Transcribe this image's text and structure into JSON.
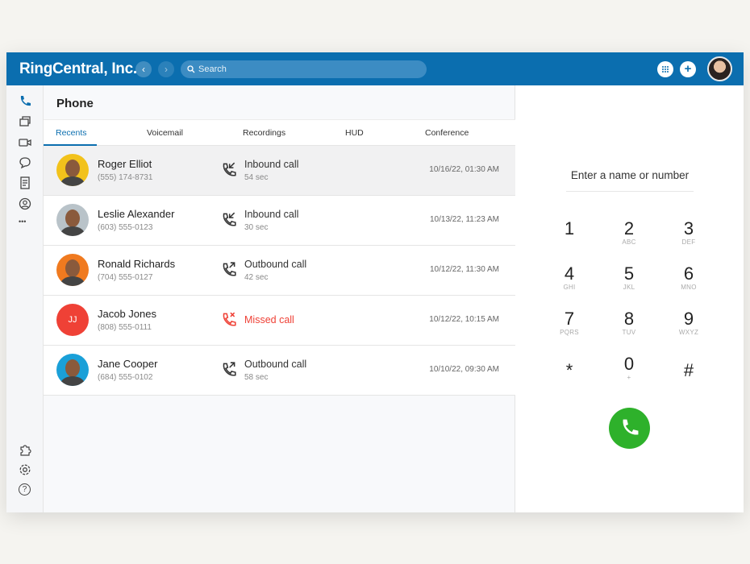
{
  "header": {
    "brand": "RingCentral, Inc.",
    "back": "‹",
    "forward": "›",
    "search_placeholder": "Search",
    "dialpad_icon": "grid-icon",
    "add": "+"
  },
  "rail": {
    "top": [
      "phone-icon",
      "messages-icon",
      "video-icon",
      "chat-icon",
      "notes-icon",
      "contacts-icon",
      "more-icon"
    ],
    "bottom": [
      "extensions-icon",
      "settings-icon",
      "help-icon"
    ],
    "more": "•••",
    "help": "?"
  },
  "page": {
    "title": "Phone",
    "tabs": [
      "Recents",
      "Voicemail",
      "Recordings",
      "HUD",
      "Conference"
    ]
  },
  "recents": [
    {
      "name": "Roger Elliot",
      "phone": "(555) 174-8731",
      "type": "Inbound call",
      "duration": "54 sec",
      "date": "10/16/22, 01:30 AM",
      "avatar_color": "#f2c21b"
    },
    {
      "name": "Leslie Alexander",
      "phone": "(603) 555-0123",
      "type": "Inbound call",
      "duration": "30 sec",
      "date": "10/13/22, 11:23 AM",
      "avatar_color": "#b9c3c9"
    },
    {
      "name": "Ronald Richards",
      "phone": "(704) 555-0127",
      "type": "Outbound call",
      "duration": "42 sec",
      "date": "10/12/22, 11:30 AM",
      "avatar_color": "#f07a1f"
    },
    {
      "name": "Jacob Jones",
      "phone": "(808) 555-0111",
      "type": "Missed call",
      "duration": "",
      "date": "10/12/22, 10:15 AM",
      "initials": "JJ"
    },
    {
      "name": "Jane Cooper",
      "phone": "(684) 555-0102",
      "type": "Outbound call",
      "duration": "58 sec",
      "date": "10/10/22, 09:30 AM",
      "avatar_color": "#1aa0d8"
    }
  ],
  "dialpad": {
    "prompt": "Enter a name or number",
    "keys": [
      {
        "d": "1",
        "l": ""
      },
      {
        "d": "2",
        "l": "ABC"
      },
      {
        "d": "3",
        "l": "DEF"
      },
      {
        "d": "4",
        "l": "GHI"
      },
      {
        "d": "5",
        "l": "JKL"
      },
      {
        "d": "6",
        "l": "MNO"
      },
      {
        "d": "7",
        "l": "PQRS"
      },
      {
        "d": "8",
        "l": "TUV"
      },
      {
        "d": "9",
        "l": "WXYZ"
      },
      {
        "d": "*",
        "l": ""
      },
      {
        "d": "0",
        "l": "+"
      },
      {
        "d": "#",
        "l": ""
      }
    ]
  },
  "colors": {
    "brand": "#0b6eaf",
    "missed": "#ef4136",
    "call": "#2eb12b"
  }
}
